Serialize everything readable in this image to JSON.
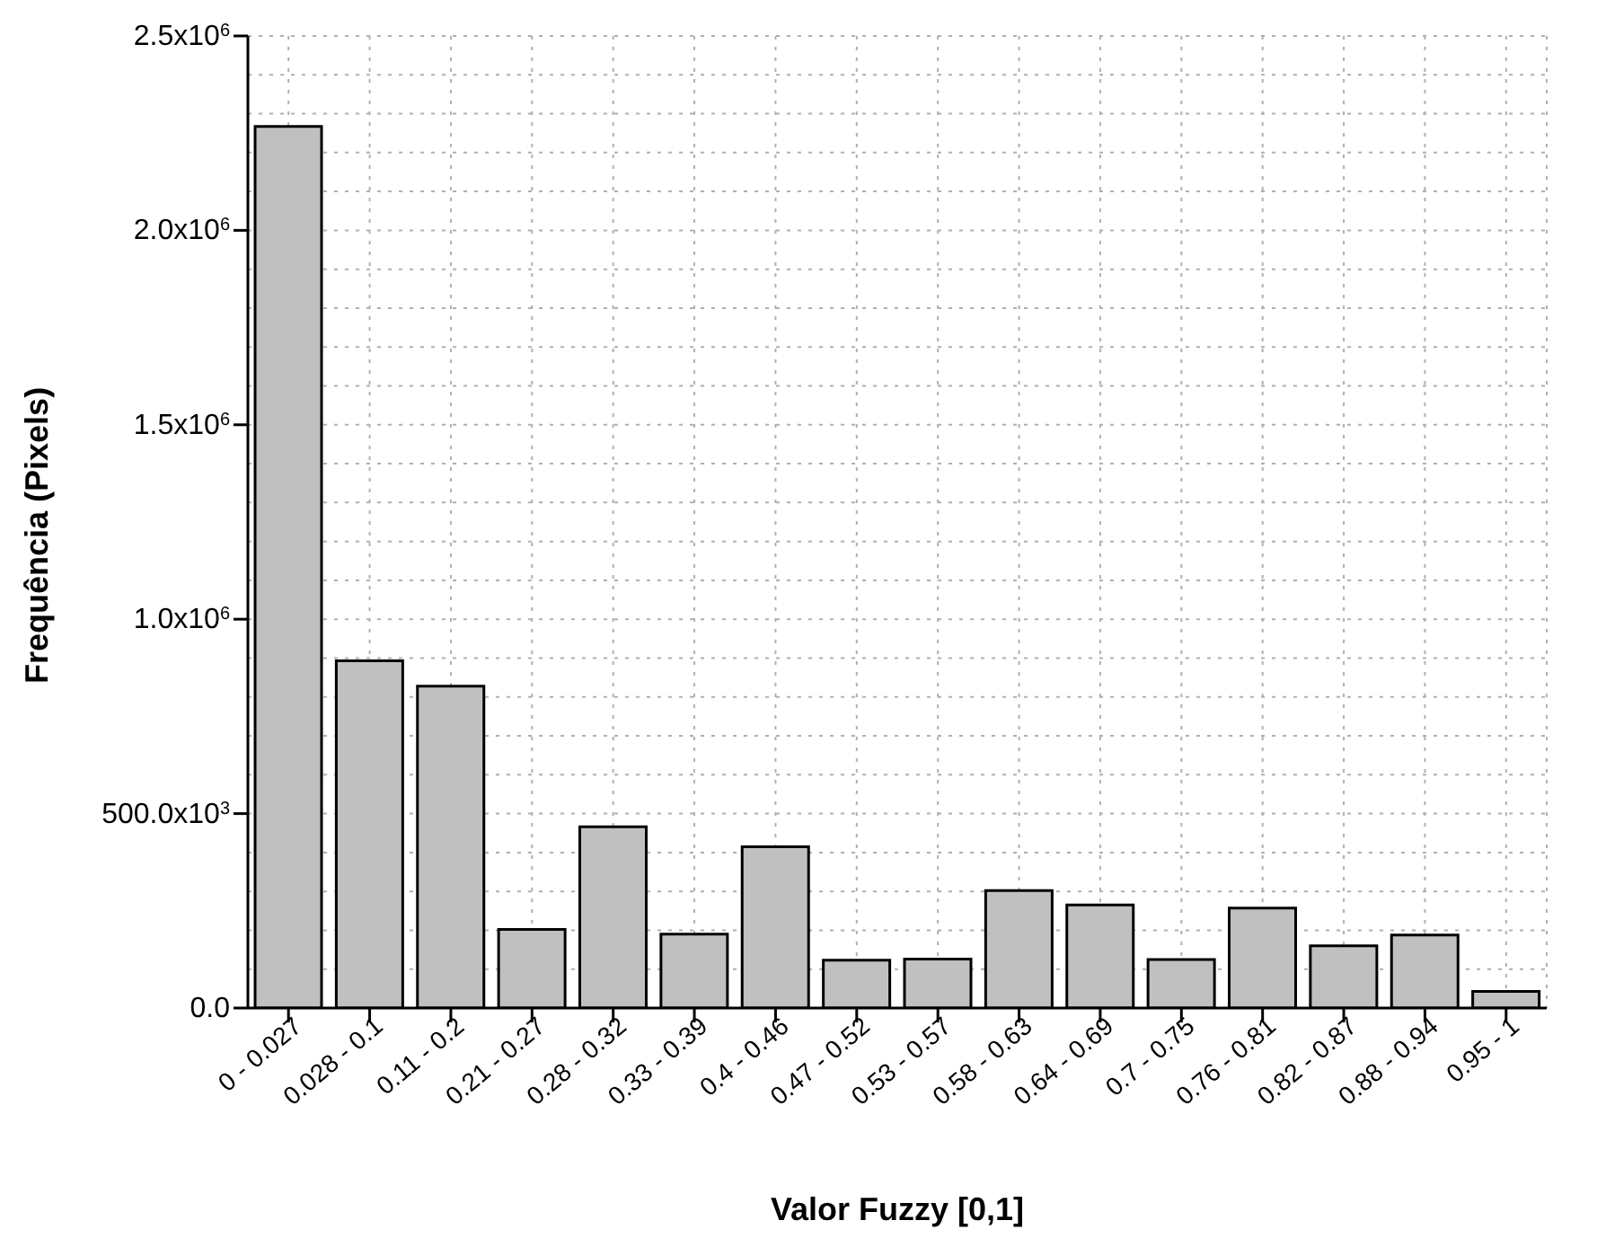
{
  "chart_data": {
    "type": "bar",
    "xlabel": "Valor Fuzzy [0,1]",
    "ylabel": "Frequência (Pixels)",
    "categories": [
      "0 - 0.027",
      "0.028 - 0.1",
      "0.11 - 0.2",
      "0.21 - 0.27",
      "0.28 - 0.32",
      "0.33 - 0.39",
      "0.4 - 0.46",
      "0.47 - 0.52",
      "0.53 - 0.57",
      "0.58 - 0.63",
      "0.64 - 0.69",
      "0.7 - 0.75",
      "0.76 - 0.81",
      "0.82 - 0.87",
      "0.88 - 0.94",
      "0.95 - 1"
    ],
    "values": [
      2267000,
      893000,
      828000,
      202000,
      466000,
      190000,
      415000,
      123000,
      126000,
      302000,
      265000,
      125000,
      257000,
      160000,
      188000,
      43000
    ],
    "color": "#c0c0c0",
    "ylim": [
      0,
      2500000
    ],
    "yticks": [
      {
        "value": 0,
        "label": "0.0"
      },
      {
        "value": 100000,
        "label": null
      },
      {
        "value": 200000,
        "label": null
      },
      {
        "value": 300000,
        "label": null
      },
      {
        "value": 400000,
        "label": null
      },
      {
        "value": 500000,
        "label": "500.0x10$^{3}$"
      },
      {
        "value": 600000,
        "label": null
      },
      {
        "value": 700000,
        "label": null
      },
      {
        "value": 800000,
        "label": null
      },
      {
        "value": 900000,
        "label": null
      },
      {
        "value": 1000000,
        "label": "1.0x10$^{6}$"
      },
      {
        "value": 1100000,
        "label": null
      },
      {
        "value": 1200000,
        "label": null
      },
      {
        "value": 1300000,
        "label": null
      },
      {
        "value": 1400000,
        "label": null
      },
      {
        "value": 1500000,
        "label": "1.5x10$^{6}$"
      },
      {
        "value": 1600000,
        "label": null
      },
      {
        "value": 1700000,
        "label": null
      },
      {
        "value": 1800000,
        "label": null
      },
      {
        "value": 1900000,
        "label": null
      },
      {
        "value": 2000000,
        "label": "2.0x10$^{6}$"
      },
      {
        "value": 2100000,
        "label": null
      },
      {
        "value": 2200000,
        "label": null
      },
      {
        "value": 2300000,
        "label": null
      },
      {
        "value": 2400000,
        "label": null
      },
      {
        "value": 2500000,
        "label": "2.5x10$^{6}$"
      }
    ],
    "grid": true
  }
}
